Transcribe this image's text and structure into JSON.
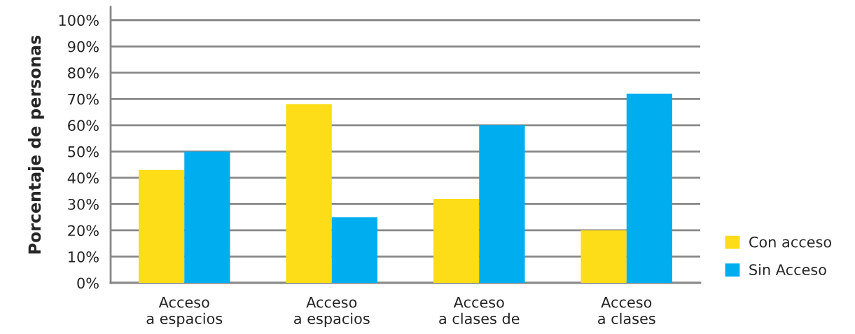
{
  "chart_data": {
    "type": "bar",
    "ylabel": "Porcentaje de personas",
    "categories": [
      "Acceso\na espacios",
      "Acceso\na espacios",
      "Acceso\na clases de",
      "Acceso\na clases"
    ],
    "series": [
      {
        "name": "Con acceso",
        "color": "#fddd17",
        "values": [
          43,
          68,
          32,
          20
        ]
      },
      {
        "name": "Sin Acceso",
        "color": "#00aeef",
        "values": [
          50,
          25,
          60,
          72
        ]
      }
    ],
    "ylim": [
      0,
      105
    ],
    "yticks": [
      {
        "value": 0,
        "label": "0%"
      },
      {
        "value": 10,
        "label": "10%"
      },
      {
        "value": 20,
        "label": "20%"
      },
      {
        "value": 30,
        "label": "30%"
      },
      {
        "value": 40,
        "label": "40%"
      },
      {
        "value": 50,
        "label": "50%"
      },
      {
        "value": 60,
        "label": "60%"
      },
      {
        "value": 70,
        "label": "70%"
      },
      {
        "value": 80,
        "label": "80%"
      },
      {
        "value": 90,
        "label": "90%"
      },
      {
        "value": 100,
        "label": "100%"
      }
    ],
    "grid": "y",
    "legend": "right"
  }
}
